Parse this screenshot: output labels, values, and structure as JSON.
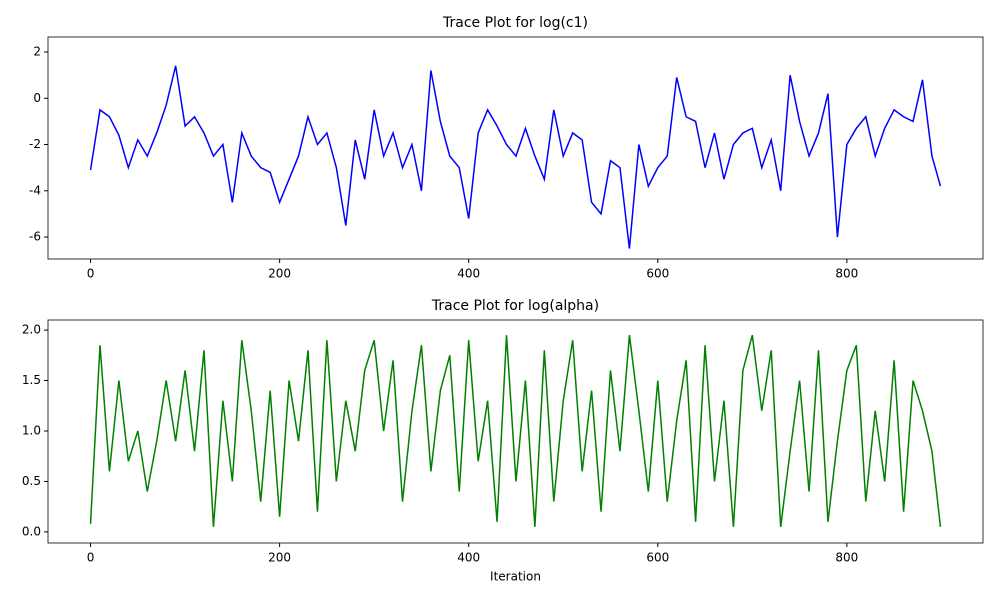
{
  "chart_data": [
    {
      "type": "line",
      "title": "Trace Plot for log(c1)",
      "color": "#0000ff",
      "x": [
        0,
        10,
        20,
        30,
        40,
        50,
        60,
        70,
        80,
        90,
        100,
        110,
        120,
        130,
        140,
        150,
        160,
        170,
        180,
        190,
        200,
        210,
        220,
        230,
        240,
        250,
        260,
        270,
        280,
        290,
        300,
        310,
        320,
        330,
        340,
        350,
        360,
        370,
        380,
        390,
        400,
        410,
        420,
        430,
        440,
        450,
        460,
        470,
        480,
        490,
        500,
        510,
        520,
        530,
        540,
        550,
        560,
        570,
        580,
        590,
        600,
        610,
        620,
        630,
        640,
        650,
        660,
        670,
        680,
        690,
        700,
        710,
        720,
        730,
        740,
        750,
        760,
        770,
        780,
        790,
        800,
        810,
        820,
        830,
        840,
        850,
        860,
        870,
        880,
        890,
        899
      ],
      "values": [
        -3.1,
        -0.5,
        -0.8,
        -1.6,
        -3.0,
        -1.8,
        -2.5,
        -1.5,
        -0.3,
        1.4,
        -1.2,
        -0.8,
        -1.5,
        -2.5,
        -2.0,
        -4.5,
        -1.5,
        -2.5,
        -3.0,
        -3.2,
        -4.5,
        -3.5,
        -2.5,
        -0.8,
        -2.0,
        -1.5,
        -3.0,
        -5.5,
        -1.8,
        -3.5,
        -0.5,
        -2.5,
        -1.5,
        -3.0,
        -2.0,
        -4.0,
        1.2,
        -1.0,
        -2.5,
        -3.0,
        -5.2,
        -1.5,
        -0.5,
        -1.2,
        -2.0,
        -2.5,
        -1.3,
        -2.5,
        -3.5,
        -0.5,
        -2.5,
        -1.5,
        -1.8,
        -4.5,
        -5.0,
        -2.7,
        -3.0,
        -6.5,
        -2.0,
        -3.8,
        -3.0,
        -2.5,
        0.9,
        -0.8,
        -1.0,
        -3.0,
        -1.5,
        -3.5,
        -2.0,
        -1.5,
        -1.3,
        -3.0,
        -1.8,
        -4.0,
        1.0,
        -1.0,
        -2.5,
        -1.5,
        0.2,
        -6.0,
        -2.0,
        -1.3,
        -0.8,
        -2.5,
        -1.3,
        -0.5,
        -0.8,
        -1.0,
        0.8,
        -2.5,
        -3.8
      ],
      "xlim": [
        -45,
        944
      ],
      "ylim": [
        -6.95,
        2.65
      ],
      "xticks": [
        0,
        200,
        400,
        600,
        800
      ],
      "yticks": [
        -6,
        -4,
        -2,
        0,
        2
      ]
    },
    {
      "type": "line",
      "title": "Trace Plot for log(alpha)",
      "xlabel": "Iteration",
      "color": "#008000",
      "x": [
        0,
        10,
        20,
        30,
        40,
        50,
        60,
        70,
        80,
        90,
        100,
        110,
        120,
        130,
        140,
        150,
        160,
        170,
        180,
        190,
        200,
        210,
        220,
        230,
        240,
        250,
        260,
        270,
        280,
        290,
        300,
        310,
        320,
        330,
        340,
        350,
        360,
        370,
        380,
        390,
        400,
        410,
        420,
        430,
        440,
        450,
        460,
        470,
        480,
        490,
        500,
        510,
        520,
        530,
        540,
        550,
        560,
        570,
        580,
        590,
        600,
        610,
        620,
        630,
        640,
        650,
        660,
        670,
        680,
        690,
        700,
        710,
        720,
        730,
        740,
        750,
        760,
        770,
        780,
        790,
        800,
        810,
        820,
        830,
        840,
        850,
        860,
        870,
        880,
        890,
        899
      ],
      "values": [
        0.08,
        1.85,
        0.6,
        1.5,
        0.7,
        1.0,
        0.4,
        0.9,
        1.5,
        0.9,
        1.6,
        0.8,
        1.8,
        0.05,
        1.3,
        0.5,
        1.9,
        1.2,
        0.3,
        1.4,
        0.15,
        1.5,
        0.9,
        1.8,
        0.2,
        1.9,
        0.5,
        1.3,
        0.8,
        1.6,
        1.9,
        1.0,
        1.7,
        0.3,
        1.2,
        1.85,
        0.6,
        1.4,
        1.75,
        0.4,
        1.9,
        0.7,
        1.3,
        0.1,
        1.95,
        0.5,
        1.5,
        0.05,
        1.8,
        0.3,
        1.3,
        1.9,
        0.6,
        1.4,
        0.2,
        1.6,
        0.8,
        1.95,
        1.2,
        0.4,
        1.5,
        0.3,
        1.1,
        1.7,
        0.1,
        1.85,
        0.5,
        1.3,
        0.05,
        1.6,
        1.95,
        1.2,
        1.8,
        0.05,
        0.8,
        1.5,
        0.4,
        1.8,
        0.1,
        0.9,
        1.6,
        1.85,
        0.3,
        1.2,
        0.5,
        1.7,
        0.2,
        1.5,
        1.2,
        0.8,
        0.05
      ],
      "xlim": [
        -45,
        944
      ],
      "ylim": [
        -0.11,
        2.1
      ],
      "xticks": [
        0,
        200,
        400,
        600,
        800
      ],
      "yticks": [
        {
          "value": 0,
          "label": "0.0"
        },
        0.5,
        {
          "value": 1,
          "label": "1.0"
        },
        1.5,
        {
          "value": 2,
          "label": "2.0"
        }
      ]
    }
  ]
}
